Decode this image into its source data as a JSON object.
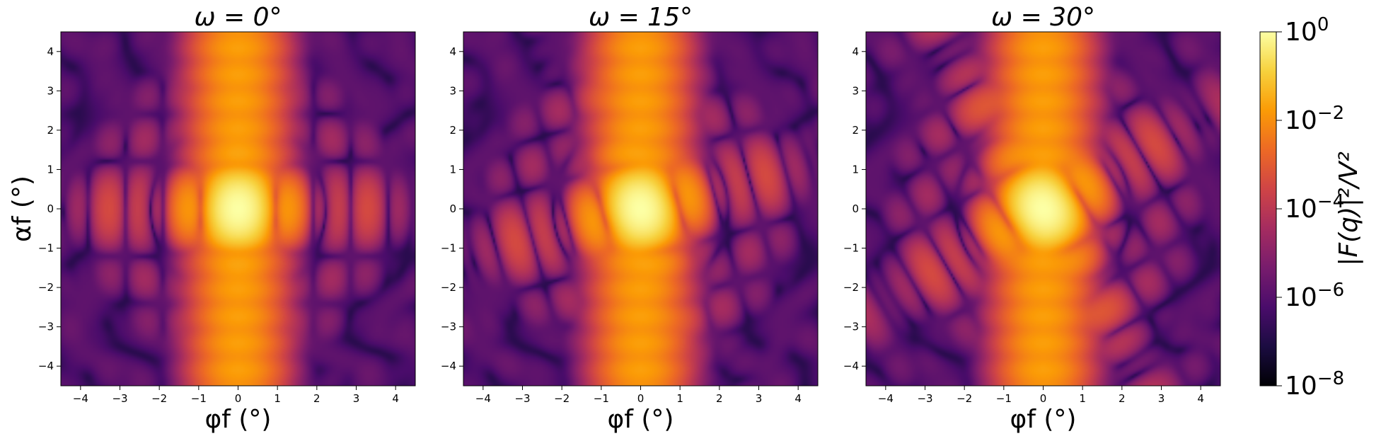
{
  "chart_data": [
    {
      "type": "heatmap",
      "title": "ω = 0°",
      "omega_deg": 0,
      "xlabel": "φf (°)",
      "ylabel": "αf (°)",
      "xlim": [
        -4.5,
        4.5
      ],
      "ylim": [
        -4.5,
        4.5
      ],
      "xticks": [
        "−4",
        "−3",
        "−2",
        "−1",
        "0",
        "1",
        "2",
        "3",
        "4"
      ],
      "yticks": [
        "−4",
        "−3",
        "−2",
        "−1",
        "0",
        "1",
        "2",
        "3",
        "4"
      ],
      "peak_at": [
        0,
        0
      ],
      "peak_value": 1,
      "grid": false
    },
    {
      "type": "heatmap",
      "title": "ω = 15°",
      "omega_deg": 15,
      "xlabel": "φf (°)",
      "ylabel": "",
      "xlim": [
        -4.5,
        4.5
      ],
      "ylim": [
        -4.5,
        4.5
      ],
      "xticks": [
        "−4",
        "−3",
        "−2",
        "−1",
        "0",
        "1",
        "2",
        "3",
        "4"
      ],
      "yticks": [
        "−4",
        "−3",
        "−2",
        "−1",
        "0",
        "1",
        "2",
        "3",
        "4"
      ],
      "peak_at": [
        0,
        0
      ],
      "peak_value": 1,
      "grid": false
    },
    {
      "type": "heatmap",
      "title": "ω = 30°",
      "omega_deg": 30,
      "xlabel": "φf (°)",
      "ylabel": "",
      "xlim": [
        -4.5,
        4.5
      ],
      "ylim": [
        -4.5,
        4.5
      ],
      "xticks": [
        "−4",
        "−3",
        "−2",
        "−1",
        "0",
        "1",
        "2",
        "3",
        "4"
      ],
      "yticks": [
        "−4",
        "−3",
        "−2",
        "−1",
        "0",
        "1",
        "2",
        "3",
        "4"
      ],
      "peak_at": [
        0,
        0
      ],
      "peak_value": 1,
      "grid": false
    }
  ],
  "colorbar": {
    "label": "|F(q)|²/V²",
    "scale": "log",
    "range": [
      1e-08,
      1
    ],
    "ticks": [
      {
        "value": 1,
        "base": "10",
        "exp": "0"
      },
      {
        "value": 0.01,
        "base": "10",
        "exp": "−2"
      },
      {
        "value": 0.0001,
        "base": "10",
        "exp": "−4"
      },
      {
        "value": 1e-06,
        "base": "10",
        "exp": "−6"
      },
      {
        "value": 1e-08,
        "base": "10",
        "exp": "−8"
      }
    ],
    "colormap": "inferno",
    "colors": [
      "#000004",
      "#1b0c41",
      "#4a0c6b",
      "#781c6d",
      "#a52c60",
      "#cf4446",
      "#ed6925",
      "#fb9b06",
      "#f7d13d",
      "#fcffa4"
    ]
  }
}
